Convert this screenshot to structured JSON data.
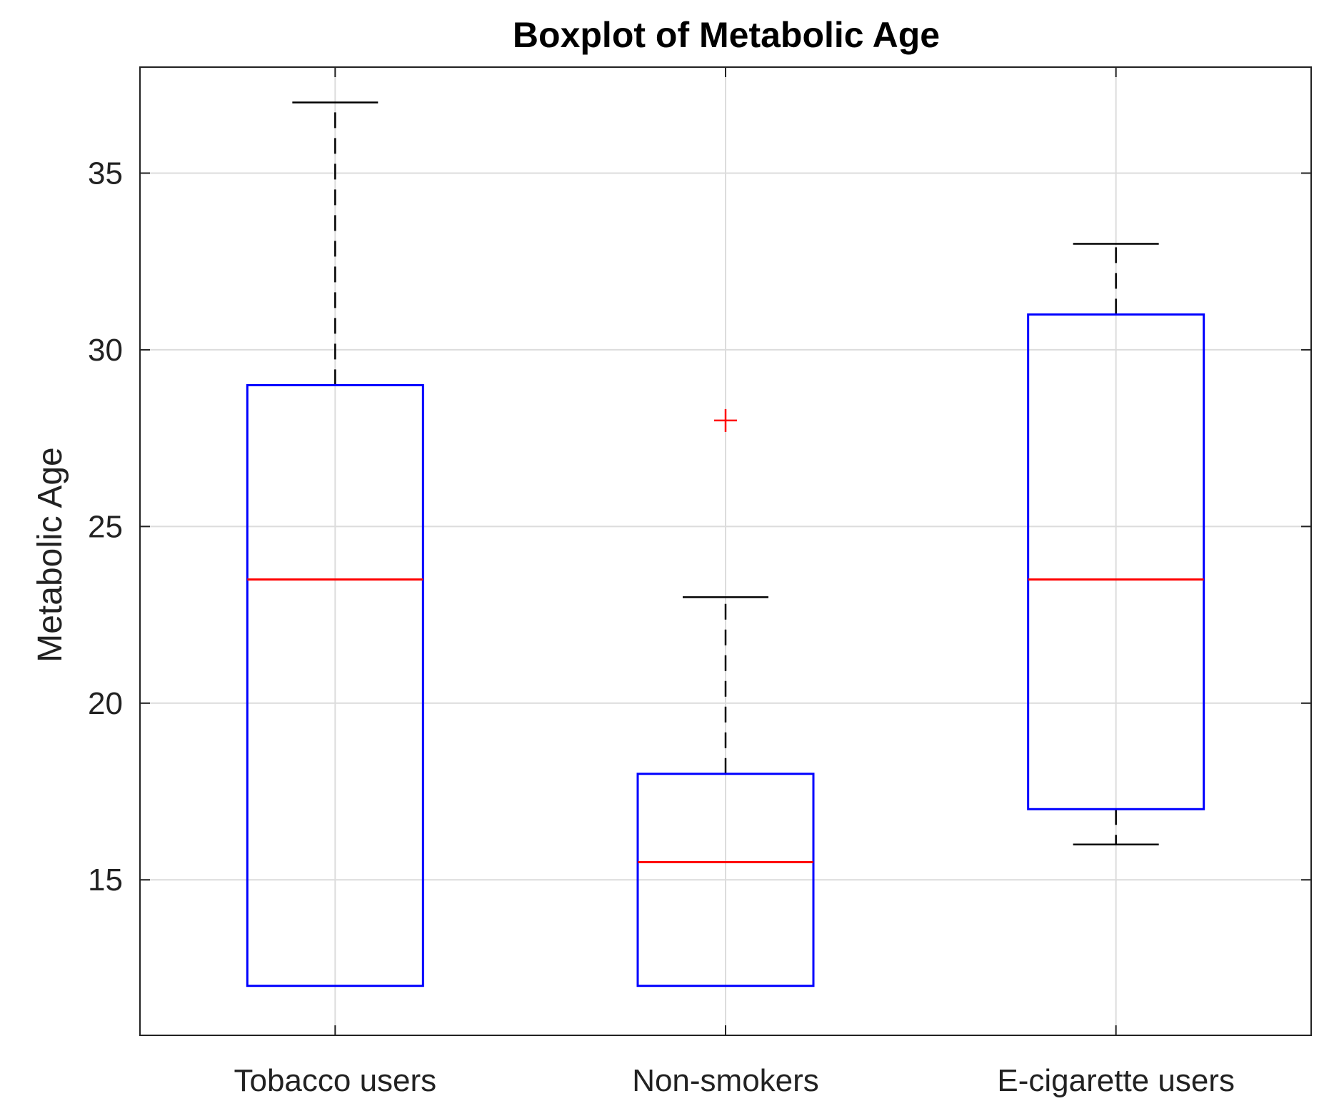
{
  "chart_data": {
    "type": "boxplot",
    "title": "Boxplot of Metabolic Age",
    "xlabel": "",
    "ylabel": "Metabolic Age",
    "ylim": [
      10.6,
      38
    ],
    "yticks": [
      15,
      20,
      25,
      30,
      35
    ],
    "grid": true,
    "categories": [
      "Tobacco users",
      "Non-smokers",
      "E-cigarette users"
    ],
    "boxes": [
      {
        "name": "Tobacco users",
        "whisker_low": 12,
        "q1": 12,
        "median": 23.5,
        "q3": 29,
        "whisker_high": 37,
        "outliers": []
      },
      {
        "name": "Non-smokers",
        "whisker_low": 12,
        "q1": 12,
        "median": 15.5,
        "q3": 18,
        "whisker_high": 23,
        "outliers": [
          28
        ]
      },
      {
        "name": "E-cigarette users",
        "whisker_low": 16,
        "q1": 17,
        "median": 23.5,
        "q3": 31,
        "whisker_high": 33,
        "outliers": []
      }
    ],
    "colors": {
      "box": "#0000ff",
      "median": "#ff0000",
      "whisker": "#000000",
      "outlier": "#ff0000",
      "grid": "#dcdcdc",
      "axis": "#222222"
    }
  }
}
